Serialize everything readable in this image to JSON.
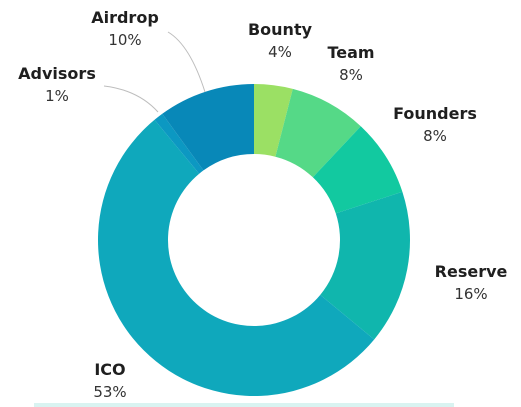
{
  "chart_data": {
    "type": "pie",
    "variant": "donut",
    "title": "",
    "slices": [
      {
        "name": "Bounty",
        "value": 4,
        "label": "4%",
        "color": "#9be064"
      },
      {
        "name": "Team",
        "value": 8,
        "label": "8%",
        "color": "#55d987"
      },
      {
        "name": "Founders",
        "value": 8,
        "label": "8%",
        "color": "#12c9a0"
      },
      {
        "name": "Reserve",
        "value": 16,
        "label": "16%",
        "color": "#10b6ad"
      },
      {
        "name": "ICO",
        "value": 53,
        "label": "53%",
        "color": "#0fa8bc"
      },
      {
        "name": "Advisors",
        "value": 1,
        "label": "1%",
        "color": "#0c98c2"
      },
      {
        "name": "Airdrop",
        "value": 10,
        "label": "10%",
        "color": "#0888b8"
      }
    ],
    "start_angle": "top (12 o'clock), clockwise",
    "legend": "none; slice labels placed outside the ring"
  }
}
